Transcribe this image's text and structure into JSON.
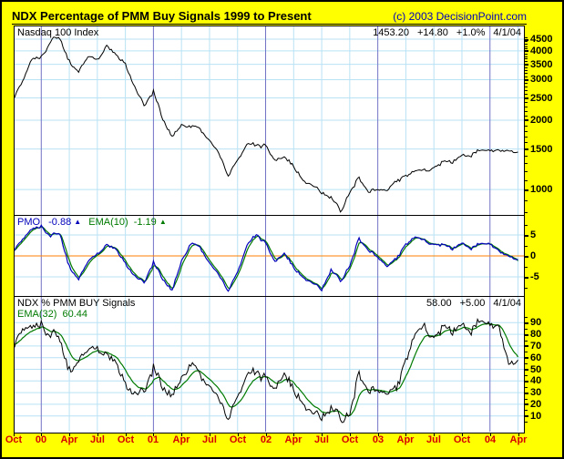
{
  "header": {
    "title": "NDX Percentage of PMM Buy Signals 1999 to Present",
    "copyright": "(c) 2003 DecisionPoint.com"
  },
  "colors": {
    "background": "#FFFF00",
    "panel_bg": "#FFFFFF",
    "grid_quarter": "#B9E2F5",
    "grid_year": "#7272C6",
    "price_line": "#000000",
    "pmo_line": "#0000BB",
    "ema_line": "#007A00",
    "zero_line": "#FF7F00",
    "x_label": "#D40000",
    "copyright_text": "#0000BB"
  },
  "icons": {
    "up_arrow": "▲"
  },
  "x_axis": {
    "labels": [
      {
        "text": "Oct",
        "m": 0
      },
      {
        "text": "00",
        "m": 3
      },
      {
        "text": "Apr",
        "m": 6
      },
      {
        "text": "Jul",
        "m": 9
      },
      {
        "text": "Oct",
        "m": 12
      },
      {
        "text": "01",
        "m": 15
      },
      {
        "text": "Apr",
        "m": 18
      },
      {
        "text": "Jul",
        "m": 21
      },
      {
        "text": "Oct",
        "m": 24
      },
      {
        "text": "02",
        "m": 27
      },
      {
        "text": "Apr",
        "m": 30
      },
      {
        "text": "Jul",
        "m": 33
      },
      {
        "text": "Oct",
        "m": 36
      },
      {
        "text": "03",
        "m": 39
      },
      {
        "text": "Apr",
        "m": 42
      },
      {
        "text": "Jul",
        "m": 45
      },
      {
        "text": "Oct",
        "m": 48
      },
      {
        "text": "04",
        "m": 51
      },
      {
        "text": "Apr",
        "m": 54
      }
    ],
    "start": "Oct 1999",
    "end": "Apr 2004"
  },
  "chart_data": [
    {
      "panel": "price",
      "type": "line",
      "label": "Nasdaq 100 Index",
      "scale": "log",
      "grid": true,
      "quote": {
        "last": "1453.20",
        "change": "+14.80",
        "change_pct": "+1.0%",
        "date": "4/1/04"
      },
      "x_unit": "months since Oct 1999",
      "monthly_values": [
        2450,
        2967,
        3707,
        3740,
        4430,
        4600,
        3620,
        3205,
        3850,
        3660,
        4200,
        3835,
        3470,
        2755,
        2340,
        2670,
        2035,
        1700,
        1935,
        1880,
        1830,
        1655,
        1440,
        1150,
        1330,
        1570,
        1578,
        1545,
        1330,
        1375,
        1245,
        1105,
        1040,
        955,
        915,
        805,
        990,
        1115,
        985,
        990,
        975,
        1095,
        1130,
        1200,
        1200,
        1265,
        1310,
        1300,
        1405,
        1425,
        1470,
        1503,
        1470,
        1440,
        1453.2
      ],
      "yticks": [
        4500,
        4000,
        3500,
        3000,
        2500,
        2000,
        1500,
        1000
      ],
      "yticks_minor": [
        4600,
        4400,
        4300,
        4200,
        4100,
        3900,
        3800,
        3700,
        3600,
        3400,
        3300,
        3200,
        3100,
        2900,
        2800,
        2700,
        2600,
        2400,
        2300,
        2200,
        2100,
        1900,
        1800,
        1700,
        1600,
        1400,
        1300,
        1200,
        1100,
        900,
        800
      ],
      "ylim": [
        780,
        5150
      ]
    },
    {
      "panel": "pmo",
      "type": "line",
      "grid": true,
      "legend": [
        {
          "name": "PMO",
          "value": "-0.88",
          "color": "#0000BB",
          "trend": "up"
        },
        {
          "name": "EMA(10)",
          "value": "-1.19",
          "color": "#007A00",
          "trend": "up"
        }
      ],
      "zero_line": true,
      "ema_period": 10,
      "monthly_values": [
        1.0,
        4.0,
        6.5,
        7.0,
        4.8,
        5.5,
        -2.5,
        -5.8,
        -1.0,
        0.5,
        2.6,
        1.5,
        -2.0,
        -5.0,
        -6.2,
        -1.5,
        -5.5,
        -8.2,
        -1.0,
        3.0,
        2.0,
        -1.5,
        -4.5,
        -8.3,
        -4.0,
        2.5,
        5.3,
        3.0,
        -1.5,
        0.5,
        -3.0,
        -5.0,
        -6.5,
        -8.3,
        -3.5,
        -6.0,
        -2.0,
        4.0,
        1.5,
        -0.5,
        -2.8,
        -0.5,
        2.5,
        4.5,
        3.5,
        3.0,
        2.5,
        1.5,
        3.0,
        2.0,
        2.8,
        3.2,
        1.0,
        -0.5,
        -0.88
      ],
      "yticks": [
        5,
        0,
        -5
      ],
      "yticks_minor": [
        7.5,
        2.5,
        -2.5,
        -7.5
      ],
      "ylim": [
        -9.5,
        9.5
      ]
    },
    {
      "panel": "pct_buy",
      "type": "line",
      "label": "NDX % PMM BUY Signals",
      "grid": true,
      "legend_ema": {
        "name": "EMA(32)",
        "value": "60.44"
      },
      "quote": {
        "last": "58.00",
        "change": "+5.00",
        "date": "4/1/04"
      },
      "ema_period": 32,
      "monthly_values": [
        68,
        85,
        87,
        88,
        80,
        78,
        50,
        55,
        70,
        68,
        62,
        55,
        35,
        27,
        33,
        52,
        35,
        28,
        45,
        55,
        45,
        38,
        25,
        8,
        25,
        45,
        50,
        42,
        32,
        45,
        30,
        22,
        12,
        6,
        15,
        8,
        15,
        45,
        33,
        30,
        26,
        35,
        55,
        80,
        85,
        80,
        85,
        80,
        88,
        85,
        90,
        92,
        85,
        50,
        58
      ],
      "yticks": [
        90,
        80,
        70,
        60,
        50,
        40,
        30,
        20,
        10
      ],
      "yticks_minor": [
        95,
        85,
        75,
        65,
        55,
        45,
        35,
        25,
        15,
        5
      ],
      "ylim": [
        0,
        100
      ]
    }
  ]
}
